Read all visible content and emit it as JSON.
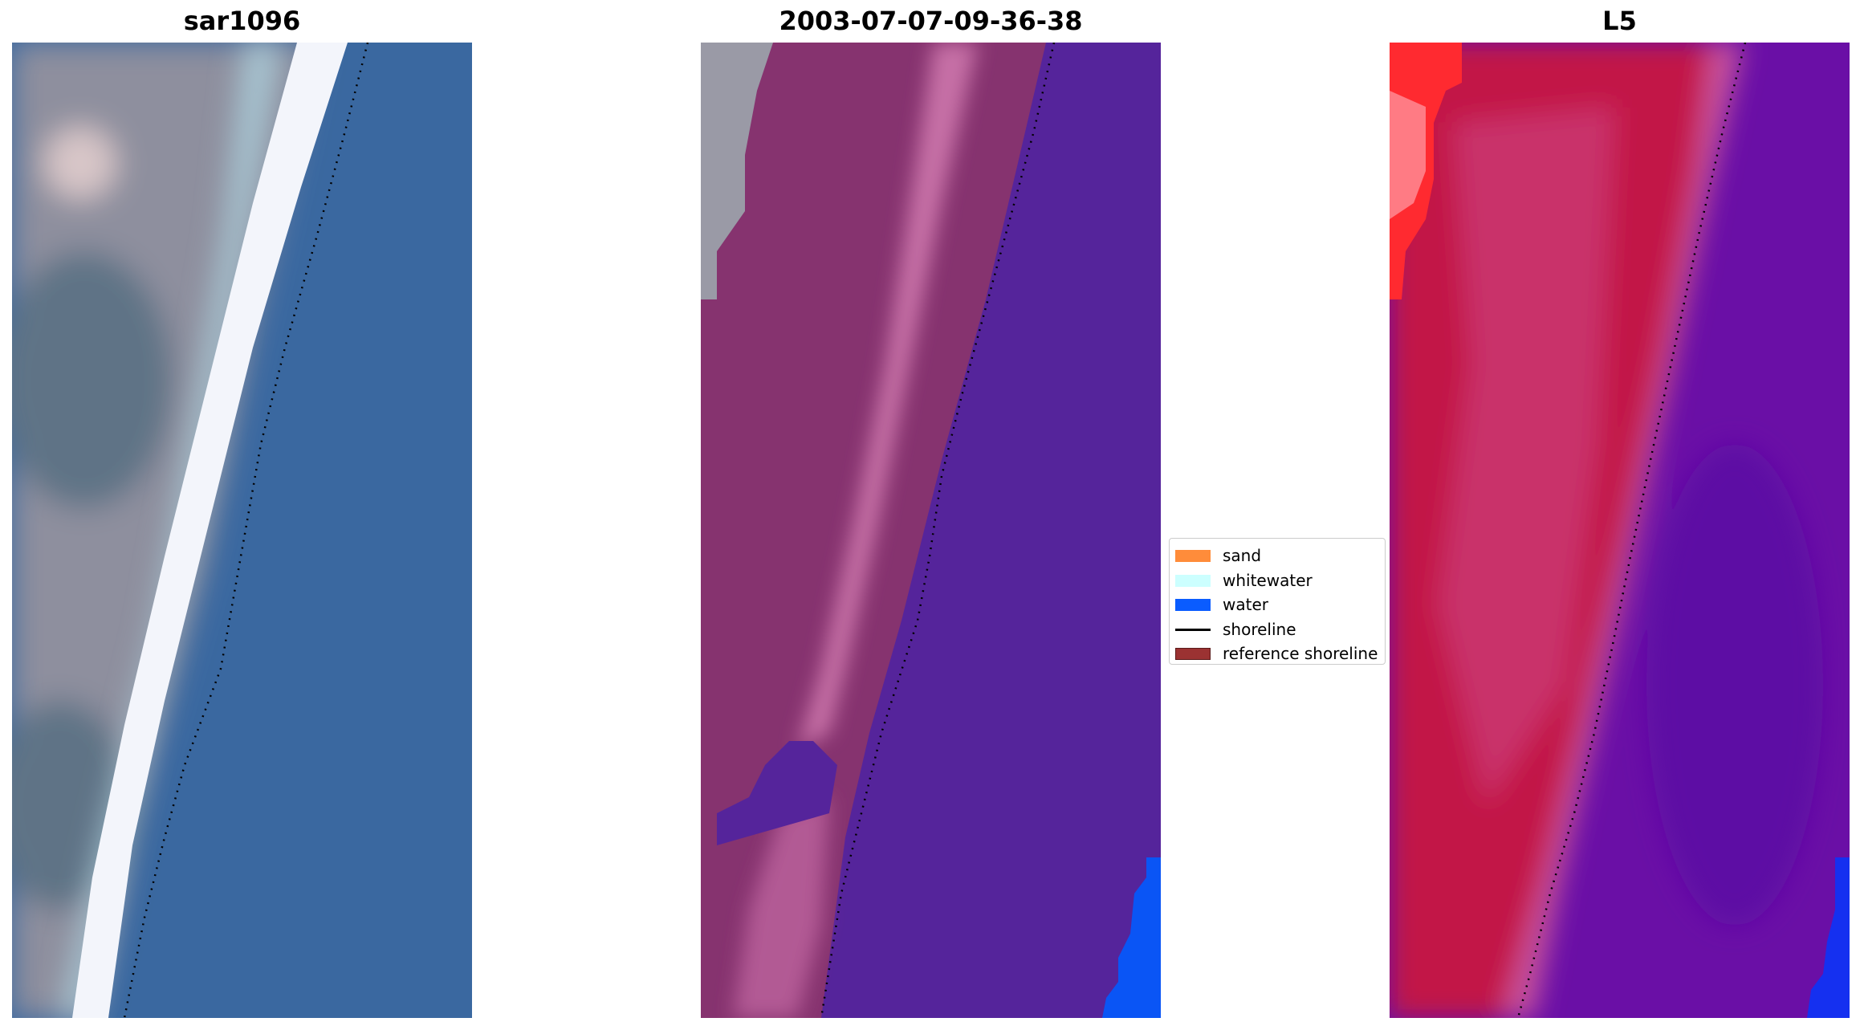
{
  "panels": [
    {
      "title": "sar1096",
      "colors": {
        "land": "#8e8f9e",
        "land_dark": "#5f7386",
        "pink_spot": "#d8c6c8",
        "whitewater": "#f3f5fb",
        "foam": "#a8c7d4",
        "water_near": "#3c7aab",
        "water": "#3a68a0",
        "shoreline": "#000000"
      }
    },
    {
      "title": "2003-07-07-09-36-38",
      "colors": {
        "land_gray": "#9a9aa6",
        "land": "#86336f",
        "land_light": "#b25a94",
        "whitewater": "#c66fa6",
        "water": "#55249b",
        "deep_water": "#0a55f5",
        "shoreline": "#000000"
      }
    },
    {
      "title": "L5",
      "colors": {
        "red": "#ff2a30",
        "red_light": "#ff7b84",
        "land": "#c21847",
        "land_mid": "#c9306a",
        "whitewater": "#c8529e",
        "water": "#6a0fa6",
        "water_dark": "#5d0aa4",
        "deep_water": "#1530f0",
        "shoreline": "#000000"
      }
    }
  ],
  "legend": {
    "items": [
      {
        "label": "sand",
        "color": "#ff8c3a",
        "kind": "patch"
      },
      {
        "label": "whitewater",
        "color": "#ccffff",
        "kind": "patch"
      },
      {
        "label": "water",
        "color": "#0a5cff",
        "kind": "patch"
      },
      {
        "label": "shoreline",
        "color": "#000000",
        "kind": "line"
      },
      {
        "label": "reference shoreline",
        "color": "#9b3232",
        "kind": "patch"
      }
    ]
  }
}
